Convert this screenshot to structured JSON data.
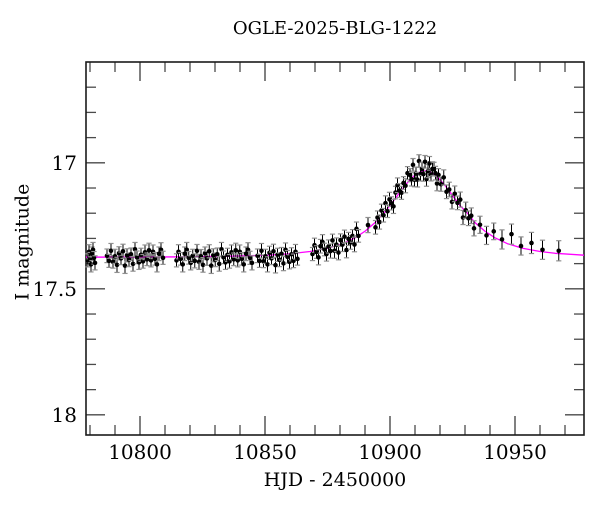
{
  "chart_data": {
    "type": "scatter",
    "title": "OGLE-2025-BLG-1222",
    "xlabel": "HJD - 2450000",
    "ylabel": "I magnitude",
    "x_range": [
      10778.4,
      10977.6
    ],
    "y_range": [
      16.6,
      18.08
    ],
    "y_axis_inverted": true,
    "grid": false,
    "x_ticks": {
      "major": [
        10800,
        10850,
        10900,
        10950
      ],
      "labels": [
        "10800",
        "10850",
        "10900",
        "10950"
      ],
      "minor_step": 10
    },
    "y_ticks": {
      "major": [
        17,
        17.5,
        18
      ],
      "labels": [
        "17",
        "17.5",
        "18"
      ],
      "minor_step": 0.1
    },
    "colors": {
      "model_curve": "#ff00ff",
      "data_point": "#000000",
      "error_bar": "#000000",
      "error_cap": "#909090",
      "frame": "#1a1a1a",
      "tick": "#4a4a4a"
    },
    "series": [
      {
        "name": "I-band photometry",
        "type": "scatter_errorbar",
        "points": [
          [
            10779.1,
            17.387,
            0.026
          ],
          [
            10779.6,
            17.353,
            0.028
          ],
          [
            10780.0,
            17.381,
            0.025
          ],
          [
            10780.4,
            17.403,
            0.03
          ],
          [
            10780.8,
            17.361,
            0.027
          ],
          [
            10781.2,
            17.345,
            0.029
          ],
          [
            10781.6,
            17.377,
            0.025
          ],
          [
            10782.0,
            17.397,
            0.028
          ],
          [
            10786.8,
            17.369,
            0.027
          ],
          [
            10787.6,
            17.389,
            0.026
          ],
          [
            10788.4,
            17.349,
            0.029
          ],
          [
            10789.2,
            17.393,
            0.025
          ],
          [
            10790.0,
            17.371,
            0.028
          ],
          [
            10790.8,
            17.405,
            0.03
          ],
          [
            10791.6,
            17.359,
            0.026
          ],
          [
            10792.4,
            17.379,
            0.025
          ],
          [
            10793.2,
            17.351,
            0.028
          ],
          [
            10794.0,
            17.408,
            0.031
          ],
          [
            10794.8,
            17.367,
            0.026
          ],
          [
            10795.6,
            17.385,
            0.027
          ],
          [
            10796.4,
            17.363,
            0.025
          ],
          [
            10797.2,
            17.401,
            0.029
          ],
          [
            10798.0,
            17.343,
            0.027
          ],
          [
            10798.8,
            17.375,
            0.025
          ],
          [
            10799.6,
            17.395,
            0.028
          ],
          [
            10800.4,
            17.365,
            0.026
          ],
          [
            10801.2,
            17.391,
            0.027
          ],
          [
            10802.0,
            17.355,
            0.029
          ],
          [
            10802.8,
            17.383,
            0.025
          ],
          [
            10803.6,
            17.347,
            0.028
          ],
          [
            10804.4,
            17.387,
            0.026
          ],
          [
            10805.2,
            17.353,
            0.027
          ],
          [
            10806.0,
            17.381,
            0.025
          ],
          [
            10806.8,
            17.403,
            0.03
          ],
          [
            10807.6,
            17.361,
            0.027
          ],
          [
            10808.4,
            17.345,
            0.028
          ],
          [
            10809.2,
            17.377,
            0.026
          ],
          [
            10814.6,
            17.387,
            0.026
          ],
          [
            10815.4,
            17.353,
            0.028
          ],
          [
            10816.2,
            17.381,
            0.025
          ],
          [
            10817.1,
            17.403,
            0.03
          ],
          [
            10817.9,
            17.361,
            0.027
          ],
          [
            10818.7,
            17.345,
            0.029
          ],
          [
            10819.5,
            17.377,
            0.025
          ],
          [
            10820.3,
            17.397,
            0.028
          ],
          [
            10821.1,
            17.369,
            0.026
          ],
          [
            10821.9,
            17.389,
            0.028
          ],
          [
            10822.8,
            17.349,
            0.025
          ],
          [
            10823.6,
            17.393,
            0.03
          ],
          [
            10824.4,
            17.371,
            0.027
          ],
          [
            10825.2,
            17.405,
            0.029
          ],
          [
            10826.0,
            17.359,
            0.025
          ],
          [
            10826.8,
            17.379,
            0.028
          ],
          [
            10827.7,
            17.351,
            0.026
          ],
          [
            10828.5,
            17.408,
            0.031
          ],
          [
            10829.3,
            17.367,
            0.026
          ],
          [
            10830.1,
            17.385,
            0.027
          ],
          [
            10830.9,
            17.363,
            0.025
          ],
          [
            10831.7,
            17.401,
            0.029
          ],
          [
            10832.6,
            17.343,
            0.027
          ],
          [
            10833.4,
            17.375,
            0.025
          ],
          [
            10834.2,
            17.395,
            0.028
          ],
          [
            10835.0,
            17.365,
            0.026
          ],
          [
            10835.8,
            17.391,
            0.027
          ],
          [
            10836.6,
            17.355,
            0.029
          ],
          [
            10837.5,
            17.383,
            0.025
          ],
          [
            10838.3,
            17.347,
            0.028
          ],
          [
            10839.1,
            17.387,
            0.026
          ],
          [
            10839.9,
            17.353,
            0.027
          ],
          [
            10840.7,
            17.381,
            0.025
          ],
          [
            10841.5,
            17.403,
            0.03
          ],
          [
            10842.4,
            17.361,
            0.027
          ],
          [
            10843.2,
            17.345,
            0.028
          ],
          [
            10844.0,
            17.377,
            0.026
          ],
          [
            10844.8,
            17.397,
            0.028
          ],
          [
            10847.0,
            17.369,
            0.027
          ],
          [
            10847.8,
            17.389,
            0.026
          ],
          [
            10848.6,
            17.349,
            0.029
          ],
          [
            10849.4,
            17.391,
            0.025
          ],
          [
            10850.2,
            17.371,
            0.028
          ],
          [
            10851.0,
            17.403,
            0.03
          ],
          [
            10851.8,
            17.357,
            0.026
          ],
          [
            10852.6,
            17.379,
            0.025
          ],
          [
            10853.4,
            17.351,
            0.028
          ],
          [
            10854.2,
            17.406,
            0.031
          ],
          [
            10855.0,
            17.365,
            0.026
          ],
          [
            10855.8,
            17.385,
            0.027
          ],
          [
            10856.6,
            17.361,
            0.025
          ],
          [
            10857.4,
            17.399,
            0.029
          ],
          [
            10858.2,
            17.345,
            0.027
          ],
          [
            10859.0,
            17.373,
            0.025
          ],
          [
            10859.8,
            17.393,
            0.028
          ],
          [
            10860.6,
            17.363,
            0.026
          ],
          [
            10861.4,
            17.389,
            0.027
          ],
          [
            10862.2,
            17.353,
            0.029
          ],
          [
            10863.0,
            17.381,
            0.025
          ],
          [
            10869.0,
            17.362,
            0.026
          ],
          [
            10869.8,
            17.327,
            0.028
          ],
          [
            10870.6,
            17.354,
            0.025
          ],
          [
            10871.4,
            17.375,
            0.03
          ],
          [
            10872.2,
            17.331,
            0.027
          ],
          [
            10873.0,
            17.314,
            0.029
          ],
          [
            10873.8,
            17.344,
            0.025
          ],
          [
            10874.6,
            17.362,
            0.028
          ],
          [
            10875.4,
            17.332,
            0.026
          ],
          [
            10876.2,
            17.35,
            0.028
          ],
          [
            10877.0,
            17.308,
            0.025
          ],
          [
            10877.8,
            17.349,
            0.03
          ],
          [
            10878.6,
            17.325,
            0.027
          ],
          [
            10879.4,
            17.356,
            0.029
          ],
          [
            10880.2,
            17.307,
            0.025
          ],
          [
            10881.0,
            17.324,
            0.028
          ],
          [
            10881.8,
            17.293,
            0.026
          ],
          [
            10882.6,
            17.346,
            0.031
          ],
          [
            10883.4,
            17.302,
            0.026
          ],
          [
            10884.2,
            17.316,
            0.027
          ],
          [
            10885.0,
            17.29,
            0.025
          ],
          [
            10885.8,
            17.324,
            0.029
          ],
          [
            10886.6,
            17.262,
            0.027
          ],
          [
            10887.4,
            17.29,
            0.025
          ],
          [
            10891.2,
            17.247,
            0.03
          ],
          [
            10894.2,
            17.256,
            0.027
          ],
          [
            10895.0,
            17.217,
            0.026
          ],
          [
            10895.8,
            17.235,
            0.028
          ],
          [
            10896.6,
            17.189,
            0.025
          ],
          [
            10897.4,
            17.208,
            0.027
          ],
          [
            10898.2,
            17.16,
            0.029
          ],
          [
            10899.0,
            17.192,
            0.025
          ],
          [
            10899.8,
            17.145,
            0.028
          ],
          [
            10900.6,
            17.161,
            0.026
          ],
          [
            10901.4,
            17.173,
            0.028
          ],
          [
            10902.2,
            17.118,
            0.025
          ],
          [
            10903.0,
            17.089,
            0.029
          ],
          [
            10903.8,
            17.11,
            0.027
          ],
          [
            10904.6,
            17.119,
            0.026
          ],
          [
            10905.4,
            17.08,
            0.025
          ],
          [
            10906.2,
            17.091,
            0.028
          ],
          [
            10907.0,
            17.041,
            0.026
          ],
          [
            10908.0,
            17.049,
            0.026
          ],
          [
            10908.6,
            17.065,
            0.027
          ],
          [
            10909.2,
            17.008,
            0.025
          ],
          [
            10909.8,
            17.067,
            0.028
          ],
          [
            10910.4,
            17.043,
            0.026
          ],
          [
            10911.0,
            17.067,
            0.029
          ],
          [
            10911.6,
            16.993,
            0.025
          ],
          [
            10912.2,
            17.045,
            0.027
          ],
          [
            10912.8,
            17.024,
            0.026
          ],
          [
            10913.4,
            17.045,
            0.028
          ],
          [
            10914.0,
            16.996,
            0.025
          ],
          [
            10914.6,
            17.064,
            0.029
          ],
          [
            10915.2,
            17.033,
            0.026
          ],
          [
            10915.8,
            17.002,
            0.027
          ],
          [
            10916.4,
            17.047,
            0.025
          ],
          [
            10917.0,
            17.024,
            0.028
          ],
          [
            10917.6,
            17.024,
            0.026
          ],
          [
            10918.2,
            17.041,
            0.027
          ],
          [
            10918.8,
            17.082,
            0.029
          ],
          [
            10919.4,
            17.048,
            0.025
          ],
          [
            10920.4,
            17.085,
            0.028
          ],
          [
            10921.5,
            17.058,
            0.03
          ],
          [
            10922.6,
            17.115,
            0.027
          ],
          [
            10923.7,
            17.106,
            0.029
          ],
          [
            10924.8,
            17.155,
            0.028
          ],
          [
            10925.9,
            17.123,
            0.031
          ],
          [
            10927.0,
            17.159,
            0.027
          ],
          [
            10928.1,
            17.146,
            0.03
          ],
          [
            10929.2,
            17.217,
            0.028
          ],
          [
            10930.3,
            17.188,
            0.032
          ],
          [
            10931.4,
            17.22,
            0.029
          ],
          [
            10932.5,
            17.21,
            0.031
          ],
          [
            10933.6,
            17.26,
            0.03
          ],
          [
            10936.0,
            17.246,
            0.034
          ],
          [
            10938.6,
            17.288,
            0.036
          ],
          [
            10941.5,
            17.272,
            0.033
          ],
          [
            10944.8,
            17.304,
            0.038
          ],
          [
            10948.6,
            17.283,
            0.04
          ],
          [
            10952.4,
            17.33,
            0.036
          ],
          [
            10956.6,
            17.318,
            0.042
          ],
          [
            10961.0,
            17.345,
            0.038
          ],
          [
            10967.5,
            17.349,
            0.04
          ]
        ]
      },
      {
        "name": "microlensing model",
        "type": "line",
        "points": [
          [
            10778.4,
            17.3745
          ],
          [
            10790,
            17.374
          ],
          [
            10800,
            17.374
          ],
          [
            10810,
            17.3735
          ],
          [
            10820,
            17.373
          ],
          [
            10835,
            17.371
          ],
          [
            10850,
            17.367
          ],
          [
            10860,
            17.361
          ],
          [
            10868,
            17.352
          ],
          [
            10875,
            17.339
          ],
          [
            10881,
            17.321
          ],
          [
            10886,
            17.2975
          ],
          [
            10890,
            17.2715
          ],
          [
            10894,
            17.2375
          ],
          [
            10898,
            17.1945
          ],
          [
            10901,
            17.1565
          ],
          [
            10904,
            17.116
          ],
          [
            10906,
            17.09
          ],
          [
            10908,
            17.067
          ],
          [
            10910,
            17.048
          ],
          [
            10912,
            17.036
          ],
          [
            10914,
            17.032
          ],
          [
            10916,
            17.036
          ],
          [
            10918,
            17.048
          ],
          [
            10920,
            17.067
          ],
          [
            10922,
            17.09
          ],
          [
            10924,
            17.116
          ],
          [
            10926,
            17.143
          ],
          [
            10928,
            17.1695
          ],
          [
            10931,
            17.2
          ],
          [
            10934,
            17.2375
          ],
          [
            10938,
            17.2715
          ],
          [
            10942,
            17.2975
          ],
          [
            10947,
            17.321
          ],
          [
            10953,
            17.339
          ],
          [
            10960,
            17.352
          ],
          [
            10966,
            17.359
          ],
          [
            10977.6,
            17.3665
          ]
        ]
      }
    ]
  }
}
